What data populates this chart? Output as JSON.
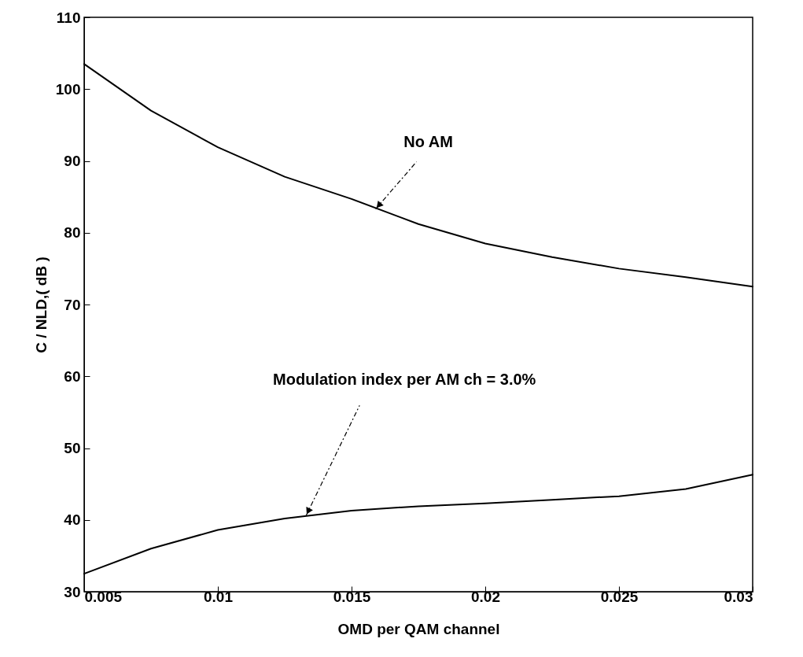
{
  "chart_data": {
    "type": "line",
    "xlabel": "OMD per QAM channel",
    "ylabel": "C / NLD,( dB )",
    "x": [
      0.005,
      0.0075,
      0.01,
      0.0125,
      0.015,
      0.0175,
      0.02,
      0.0225,
      0.025,
      0.0275,
      0.03
    ],
    "series": [
      {
        "color": "#000000",
        "values": [
          103.5,
          97.0,
          91.9,
          87.8,
          84.7,
          81.2,
          78.5,
          76.6,
          75.0,
          73.8,
          72.5
        ]
      },
      {
        "color": "#000000",
        "values": [
          32.5,
          36.0,
          38.6,
          40.2,
          41.3,
          41.9,
          42.3,
          42.8,
          43.3,
          44.3,
          46.3
        ]
      }
    ],
    "xlim": [
      0.005,
      0.03
    ],
    "xticks": [
      0.005,
      0.01,
      0.015,
      0.02,
      0.025,
      0.03
    ],
    "ylim": [
      30,
      110
    ],
    "yticks": [
      30,
      40,
      50,
      60,
      70,
      80,
      90,
      100,
      110
    ],
    "grid": false,
    "marker": "none",
    "line_style": "solid",
    "annotations": [
      {
        "text": "No AM",
        "x": 0.0159,
        "y": 83.3
      },
      {
        "text": "Modulation index per AM ch = 3.0%",
        "x": 0.0133,
        "y": 40.6
      }
    ]
  }
}
